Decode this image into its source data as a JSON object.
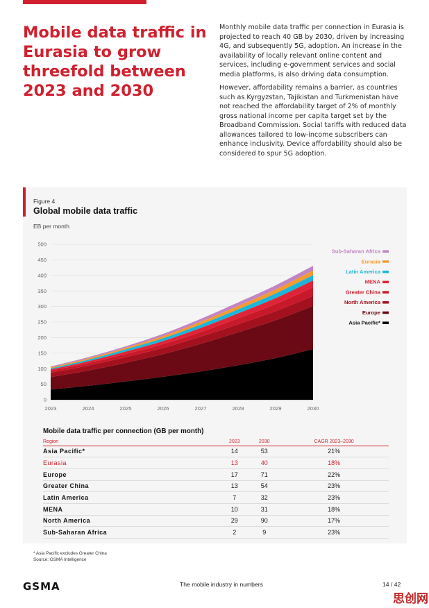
{
  "headline": [
    "Mobile data traffic in",
    "Eurasia to grow",
    "threefold between",
    "2023 and 2030"
  ],
  "intro": [
    "Monthly mobile data traffic per connection in Eurasia is projected to reach 40 GB by 2030, driven by increasing 4G, and subsequently 5G, adoption. An increase in the availability of locally relevant online content and services, including e-government services and social media platforms, is also driving data consumption.",
    "However, affordability remains a barrier, as countries such as Kyrgyzstan, Tajikistan and Turkmenistan have not reached the affordability target of 2% of monthly gross national income per capita target set by the Broadband Commission. Social tariffs with reduced data allowances tailored to low-income subscribers can enhance inclusivity. Device affordability should also be considered to spur 5G adoption."
  ],
  "figure": {
    "label": "Figure 4",
    "title": "Global mobile data traffic",
    "unit": "EB per month"
  },
  "chart_data": {
    "type": "area",
    "stacked": true,
    "title": "Global mobile data traffic",
    "ylabel": "EB per month",
    "xlabel": "",
    "x": [
      "2023",
      "2024",
      "2025",
      "2026",
      "2027",
      "2028",
      "2029",
      "2030"
    ],
    "y_ticks": [
      0,
      50,
      100,
      150,
      200,
      250,
      300,
      350,
      400,
      450,
      500
    ],
    "ylim": [
      0,
      500
    ],
    "grid": true,
    "legend_position": "right",
    "series": [
      {
        "name": "Asia Pacific*",
        "color": "#000000",
        "values": [
          33,
          45,
          59,
          74,
          91,
          111,
          134,
          163
        ]
      },
      {
        "name": "Europe",
        "color": "#6b0a14",
        "values": [
          40,
          49,
          60,
          73,
          89,
          106,
          122,
          139
        ]
      },
      {
        "name": "North America",
        "color": "#a3111e",
        "values": [
          14,
          16,
          18,
          20,
          23,
          26,
          29,
          32
        ]
      },
      {
        "name": "Greater China",
        "color": "#c8192a",
        "values": [
          7,
          8,
          10,
          12,
          15,
          19,
          23,
          28
        ]
      },
      {
        "name": "MENA",
        "color": "#e02438",
        "values": [
          4,
          6,
          8,
          10,
          13,
          16,
          19,
          22
        ]
      },
      {
        "name": "Latin America",
        "color": "#1bb6d9",
        "values": [
          3,
          5,
          7,
          9,
          11,
          13,
          15,
          17
        ]
      },
      {
        "name": "Eurasia",
        "color": "#f39b2e",
        "values": [
          3,
          4,
          5,
          7,
          9,
          11,
          13,
          15
        ]
      },
      {
        "name": "Sub-Saharan Africa",
        "color": "#c184c4",
        "values": [
          3,
          4,
          5,
          7,
          9,
          11,
          13,
          15
        ]
      }
    ]
  },
  "table": {
    "title": "Mobile data traffic per connection (GB per month)",
    "headers": [
      "Region",
      "2023",
      "2030",
      "CAGR 2023–2030"
    ],
    "rows": [
      [
        "Asia Pacific*",
        "14",
        "53",
        "21%"
      ],
      [
        "Eurasia",
        "13",
        "40",
        "18%"
      ],
      [
        "Europe",
        "17",
        "71",
        "22%"
      ],
      [
        "Greater China",
        "13",
        "54",
        "23%"
      ],
      [
        "Latin America",
        "7",
        "32",
        "23%"
      ],
      [
        "MENA",
        "10",
        "31",
        "18%"
      ],
      [
        "North America",
        "29",
        "90",
        "17%"
      ],
      [
        "Sub-Saharan Africa",
        "2",
        "9",
        "23%"
      ]
    ],
    "highlight_row": 1
  },
  "footnotes": [
    "* Asia Pacific excludes Greater China",
    "Source: GSMA Intelligence"
  ],
  "footer": {
    "logo": "GSMA",
    "text": "The mobile industry in numbers",
    "page": "14 / 42",
    "watermark": "思创网"
  },
  "colors": {
    "accent": "#d0202e",
    "panel": "#f5f5f5"
  }
}
